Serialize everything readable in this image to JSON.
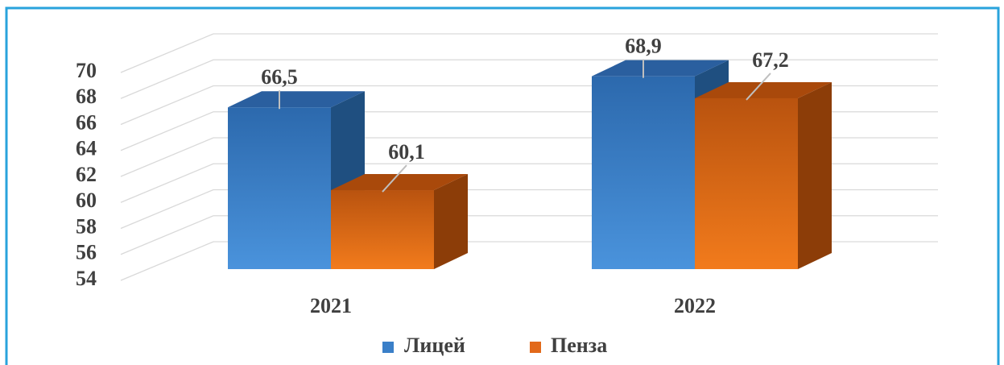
{
  "chart_data": {
    "type": "bar3d",
    "categories": [
      "2021",
      "2022"
    ],
    "series": [
      {
        "name": "Лицей",
        "color": "#3a7fc8",
        "values": [
          66.5,
          68.9
        ],
        "value_labels": [
          "66,5",
          "68,9"
        ]
      },
      {
        "name": "Пенза",
        "color": "#e2691a",
        "values": [
          60.1,
          67.2
        ],
        "value_labels": [
          "60,1",
          "67,2"
        ]
      }
    ],
    "ylim": [
      54,
      70
    ],
    "yticks": [
      54,
      56,
      58,
      60,
      62,
      64,
      66,
      68,
      70
    ],
    "grid": true,
    "legend": "bottom"
  }
}
